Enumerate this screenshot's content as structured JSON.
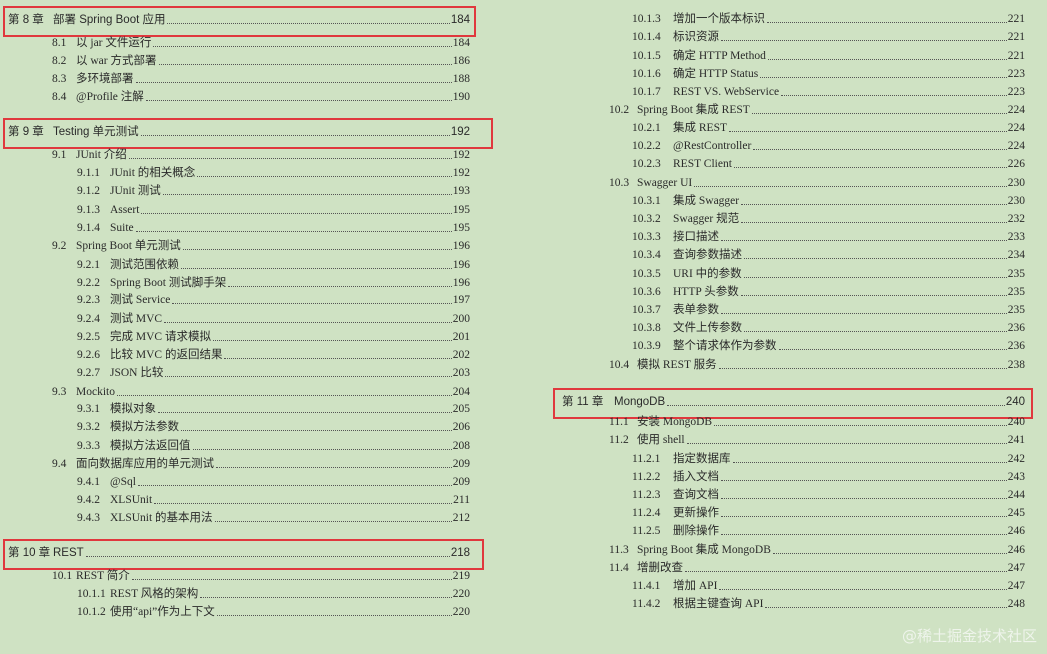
{
  "left_column": [
    {
      "level": "chapter",
      "num": "第 8 章",
      "title": "部署 Spring Boot 应用",
      "page": "184"
    },
    {
      "level": "section",
      "num": "8.1",
      "title": "以 jar 文件运行",
      "page": "184"
    },
    {
      "level": "section",
      "num": "8.2",
      "title": "以 war 方式部署",
      "page": "186"
    },
    {
      "level": "section",
      "num": "8.3",
      "title": "多环境部署",
      "page": "188"
    },
    {
      "level": "section",
      "num": "8.4",
      "title": "@Profile 注解",
      "page": "190"
    },
    {
      "level": "chapter",
      "num": "第 9 章",
      "title": "Testing 单元测试",
      "page": "192"
    },
    {
      "level": "section",
      "num": "9.1",
      "title": "JUnit 介绍",
      "page": "192"
    },
    {
      "level": "sub",
      "num": "9.1.1",
      "title": "JUnit 的相关概念",
      "page": "192"
    },
    {
      "level": "sub",
      "num": "9.1.2",
      "title": "JUnit 测试",
      "page": "193"
    },
    {
      "level": "sub",
      "num": "9.1.3",
      "title": "Assert",
      "page": "195"
    },
    {
      "level": "sub",
      "num": "9.1.4",
      "title": "Suite",
      "page": "195"
    },
    {
      "level": "section",
      "num": "9.2",
      "title": "Spring Boot 单元测试",
      "page": "196"
    },
    {
      "level": "sub",
      "num": "9.2.1",
      "title": "测试范围依赖",
      "page": "196"
    },
    {
      "level": "sub",
      "num": "9.2.2",
      "title": "Spring Boot 测试脚手架",
      "page": "196"
    },
    {
      "level": "sub",
      "num": "9.2.3",
      "title": "测试 Service",
      "page": "197"
    },
    {
      "level": "sub",
      "num": "9.2.4",
      "title": "测试 MVC",
      "page": "200"
    },
    {
      "level": "sub",
      "num": "9.2.5",
      "title": "完成 MVC 请求模拟",
      "page": "201"
    },
    {
      "level": "sub",
      "num": "9.2.6",
      "title": "比较 MVC 的返回结果",
      "page": "202"
    },
    {
      "level": "sub",
      "num": "9.2.7",
      "title": "JSON 比较",
      "page": "203"
    },
    {
      "level": "section",
      "num": "9.3",
      "title": "Mockito",
      "page": "204"
    },
    {
      "level": "sub",
      "num": "9.3.1",
      "title": "模拟对象",
      "page": "205"
    },
    {
      "level": "sub",
      "num": "9.3.2",
      "title": "模拟方法参数",
      "page": "206"
    },
    {
      "level": "sub",
      "num": "9.3.3",
      "title": "模拟方法返回值",
      "page": "208"
    },
    {
      "level": "section",
      "num": "9.4",
      "title": "面向数据库应用的单元测试",
      "page": "209"
    },
    {
      "level": "sub",
      "num": "9.4.1",
      "title": "@Sql",
      "page": "209"
    },
    {
      "level": "sub",
      "num": "9.4.2",
      "title": "XLSUnit",
      "page": "211"
    },
    {
      "level": "sub",
      "num": "9.4.3",
      "title": "XLSUnit 的基本用法",
      "page": "212"
    },
    {
      "level": "chapter",
      "num": "第 10 章",
      "title": "REST",
      "page": "218"
    },
    {
      "level": "section",
      "num": "10.1",
      "title": "REST 简介",
      "page": "219"
    },
    {
      "level": "sub",
      "num": "10.1.1",
      "title": "REST 风格的架构",
      "page": "220"
    },
    {
      "level": "sub",
      "num": "10.1.2",
      "title": "使用“api”作为上下文",
      "page": "220"
    }
  ],
  "right_column": [
    {
      "level": "sub",
      "num": "10.1.3",
      "title": "增加一个版本标识",
      "page": "221"
    },
    {
      "level": "sub",
      "num": "10.1.4",
      "title": "标识资源",
      "page": "221"
    },
    {
      "level": "sub",
      "num": "10.1.5",
      "title": "确定 HTTP Method",
      "page": "221"
    },
    {
      "level": "sub",
      "num": "10.1.6",
      "title": "确定 HTTP Status",
      "page": "223"
    },
    {
      "level": "sub",
      "num": "10.1.7",
      "title": "REST VS. WebService",
      "page": "223"
    },
    {
      "level": "section",
      "num": "10.2",
      "title": "Spring Boot 集成 REST",
      "page": "224"
    },
    {
      "level": "sub",
      "num": "10.2.1",
      "title": "集成 REST",
      "page": "224"
    },
    {
      "level": "sub",
      "num": "10.2.2",
      "title": "@RestController",
      "page": "224"
    },
    {
      "level": "sub",
      "num": "10.2.3",
      "title": "REST Client",
      "page": "226"
    },
    {
      "level": "section",
      "num": "10.3",
      "title": "Swagger UI",
      "page": "230"
    },
    {
      "level": "sub",
      "num": "10.3.1",
      "title": "集成 Swagger",
      "page": "230"
    },
    {
      "level": "sub",
      "num": "10.3.2",
      "title": "Swagger 规范",
      "page": "232"
    },
    {
      "level": "sub",
      "num": "10.3.3",
      "title": "接口描述",
      "page": "233"
    },
    {
      "level": "sub",
      "num": "10.3.4",
      "title": "查询参数描述",
      "page": "234"
    },
    {
      "level": "sub",
      "num": "10.3.5",
      "title": "URI 中的参数",
      "page": "235"
    },
    {
      "level": "sub",
      "num": "10.3.6",
      "title": "HTTP 头参数",
      "page": "235"
    },
    {
      "level": "sub",
      "num": "10.3.7",
      "title": "表单参数",
      "page": "235"
    },
    {
      "level": "sub",
      "num": "10.3.8",
      "title": "文件上传参数",
      "page": "236"
    },
    {
      "level": "sub",
      "num": "10.3.9",
      "title": "整个请求体作为参数",
      "page": "236"
    },
    {
      "level": "section",
      "num": "10.4",
      "title": "模拟 REST 服务",
      "page": "238"
    },
    {
      "level": "chapter",
      "num": "第 11 章",
      "title": "MongoDB",
      "page": "240"
    },
    {
      "level": "section",
      "num": "11.1",
      "title": "安装 MongoDB",
      "page": "240"
    },
    {
      "level": "section",
      "num": "11.2",
      "title": "使用 shell",
      "page": "241"
    },
    {
      "level": "sub",
      "num": "11.2.1",
      "title": "指定数据库",
      "page": "242"
    },
    {
      "level": "sub",
      "num": "11.2.2",
      "title": "插入文档",
      "page": "243"
    },
    {
      "level": "sub",
      "num": "11.2.3",
      "title": "查询文档",
      "page": "244"
    },
    {
      "level": "sub",
      "num": "11.2.4",
      "title": "更新操作",
      "page": "245"
    },
    {
      "level": "sub",
      "num": "11.2.5",
      "title": "删除操作",
      "page": "246"
    },
    {
      "level": "section",
      "num": "11.3",
      "title": "Spring Boot 集成 MongoDB",
      "page": "246"
    },
    {
      "level": "section",
      "num": "11.4",
      "title": "增删改查",
      "page": "247"
    },
    {
      "level": "sub",
      "num": "11.4.1",
      "title": "增加 API",
      "page": "247"
    },
    {
      "level": "sub",
      "num": "11.4.2",
      "title": "根据主键查询 API",
      "page": "248"
    }
  ],
  "highlight_color": "#e0383d",
  "watermark": "@稀土掘金技术社区"
}
